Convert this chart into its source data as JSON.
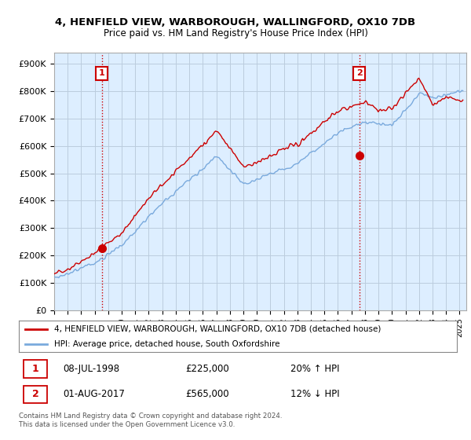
{
  "title_line1": "4, HENFIELD VIEW, WARBOROUGH, WALLINGFORD, OX10 7DB",
  "title_line2": "Price paid vs. HM Land Registry's House Price Index (HPI)",
  "ylim": [
    0,
    940000
  ],
  "yticks": [
    0,
    100000,
    200000,
    300000,
    400000,
    500000,
    600000,
    700000,
    800000,
    900000
  ],
  "ytick_labels": [
    "£0",
    "£100K",
    "£200K",
    "£300K",
    "£400K",
    "£500K",
    "£600K",
    "£700K",
    "£800K",
    "£900K"
  ],
  "xlim_start": 1995.0,
  "xlim_end": 2025.5,
  "sale1_x": 1998.52,
  "sale1_y": 225000,
  "sale2_x": 2017.58,
  "sale2_y": 565000,
  "property_color": "#cc0000",
  "hpi_color": "#7aaadd",
  "chart_bg": "#ddeeff",
  "legend_property": "4, HENFIELD VIEW, WARBOROUGH, WALLINGFORD, OX10 7DB (detached house)",
  "legend_hpi": "HPI: Average price, detached house, South Oxfordshire",
  "note1_date": "08-JUL-1998",
  "note1_price": "£225,000",
  "note1_hpi": "20% ↑ HPI",
  "note2_date": "01-AUG-2017",
  "note2_price": "£565,000",
  "note2_hpi": "12% ↓ HPI",
  "footer": "Contains HM Land Registry data © Crown copyright and database right 2024.\nThis data is licensed under the Open Government Licence v3.0.",
  "background_color": "#ffffff",
  "grid_color": "#bbccdd"
}
